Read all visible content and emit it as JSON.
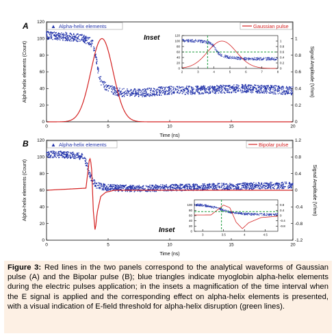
{
  "figure_panels": [
    {
      "id": "A",
      "letter": "A",
      "inset_label": "Inset",
      "legend_left": "Alpha-helix elements",
      "legend_right": "Gaussian pulse",
      "xlabel": "Time (ns)",
      "ylabel": "Alpha-helix elements (Count)",
      "y2label": "Signal Amplitude (V/nm)",
      "x_ticks": [
        "0",
        "5",
        "10",
        "15",
        "20"
      ],
      "y_ticks": [
        "0",
        "20",
        "40",
        "60",
        "80",
        "100",
        "120"
      ],
      "y2_ticks": [
        "0",
        "0.2",
        "0.4",
        "0.6",
        "0.8",
        "1"
      ],
      "inset": {
        "x_ticks": [
          "2",
          "3",
          "4",
          "5",
          "6",
          "7",
          "8"
        ],
        "y_ticks": [
          "0",
          "20",
          "40",
          "60",
          "80",
          "100",
          "120"
        ],
        "y2_ticks": [
          "0",
          "0.2",
          "0.4",
          "0.6",
          "0.8",
          "1"
        ]
      }
    },
    {
      "id": "B",
      "letter": "B",
      "inset_label": "Inset",
      "legend_left": "Alpha-helix elements",
      "legend_right": "Bipolar pulse",
      "xlabel": "Time (ns)",
      "ylabel": "Alpha-helix elements (Count)",
      "y2label": "Signal Amplitude (V/nm)",
      "x_ticks": [
        "0",
        "5",
        "10",
        "15",
        "20"
      ],
      "y_ticks": [
        "0",
        "20",
        "40",
        "60",
        "80",
        "100",
        "120"
      ],
      "y2_ticks": [
        "-1.2",
        "-0.8",
        "-0.4",
        "0",
        "0.4",
        "0.8",
        "1.2"
      ],
      "inset": {
        "x_ticks": [
          "3",
          "3.5",
          "4",
          "4.5"
        ],
        "y_ticks": [
          "0",
          "20",
          "40",
          "60",
          "80",
          "100"
        ],
        "y2_ticks": [
          "-0.8",
          "-0.4",
          "0",
          "0.4",
          "0.8"
        ]
      }
    }
  ],
  "chart_data": [
    {
      "type": "scatter",
      "panel": "A",
      "series": [
        {
          "name": "Alpha-helix elements",
          "axis": "left",
          "color": "#2233aa",
          "x": [
            0,
            1,
            2,
            3,
            3.5,
            3.8,
            4.0,
            4.2,
            4.4,
            4.6,
            5,
            6,
            8,
            10,
            12,
            14,
            16,
            18,
            20
          ],
          "y": [
            104,
            103,
            102,
            100,
            97,
            92,
            80,
            60,
            50,
            45,
            40,
            35,
            35,
            38,
            38,
            39,
            40,
            39,
            37
          ]
        },
        {
          "name": "Gaussian pulse",
          "axis": "right",
          "color": "#d42020",
          "type": "line",
          "model": "gaussian",
          "amplitude": 1,
          "center": 4.5,
          "sigma": 0.9
        }
      ],
      "xlim": [
        0,
        20
      ],
      "ylim": [
        0,
        120
      ],
      "y2lim": [
        0,
        1.2
      ]
    },
    {
      "type": "scatter",
      "panel": "B",
      "series": [
        {
          "name": "Alpha-helix elements",
          "axis": "left",
          "color": "#2233aa",
          "x": [
            0,
            1,
            2,
            3,
            3.3,
            3.6,
            3.9,
            4.2,
            5,
            7,
            10,
            13,
            16,
            20
          ],
          "y": [
            103,
            103,
            102,
            100,
            90,
            75,
            68,
            65,
            63,
            62,
            63,
            64,
            65,
            66
          ]
        },
        {
          "name": "Bipolar pulse",
          "axis": "right",
          "color": "#d42020",
          "type": "line",
          "x": [
            0,
            3.2,
            3.5,
            3.65,
            3.8,
            3.95,
            4.1,
            4.4,
            4.8,
            5.5,
            20
          ],
          "y": [
            0,
            0.05,
            0.8,
            0.6,
            -0.5,
            -1.0,
            -0.55,
            -0.15,
            -0.05,
            0,
            0
          ]
        }
      ],
      "xlim": [
        0,
        20
      ],
      "ylim": [
        0,
        120
      ],
      "y2lim": [
        -1.2,
        1.2
      ]
    }
  ],
  "caption": {
    "label": "Figure 3:",
    "text": "Red lines in the two panels correspond to the analytical waveforms of Gaussian pulse (A) and the Bipolar pulse (B); blue triangles indicate myoglobin alpha-helix elements during the electric pulses application; in the insets a magnification of the time interval when the E signal is applied and the corresponding effect on alpha-helix elements is presented, with a visual indication of E-field threshold for alpha-helix disruption (green lines)."
  }
}
